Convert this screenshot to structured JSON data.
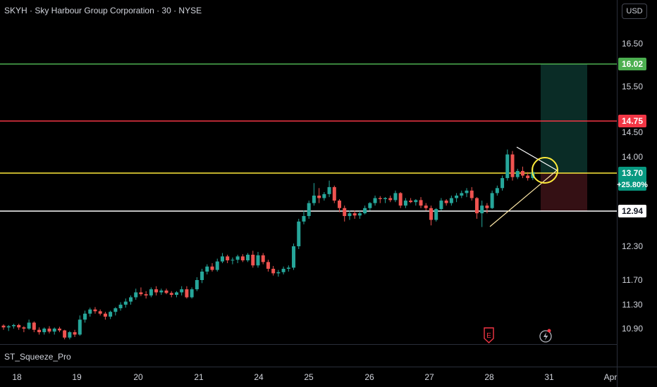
{
  "header": {
    "title": "SKYH · Sky Harbour Group Corporation · 30 · NYSE",
    "currency": "USD"
  },
  "indicator": {
    "label": "ST_Squeeze_Pro"
  },
  "colors": {
    "background": "#000000",
    "up": "#26a69a",
    "down": "#ef5350",
    "target_line": "#4caf50",
    "red_line": "#f23645",
    "yellow_line": "#ffeb3b",
    "white_line": "#ffffff"
  },
  "chart_data": {
    "type": "candlestick",
    "xlabels": [
      "18",
      "19",
      "20",
      "21",
      "24",
      "25",
      "26",
      "27",
      "28",
      "31",
      "Apr"
    ],
    "ylabels": [
      "16.50",
      "15.50",
      "14.50",
      "14.00",
      "12.30",
      "11.70",
      "11.30",
      "10.90"
    ],
    "price_levels": [
      {
        "value": 16.02,
        "label": "16.02",
        "color": "#4caf50"
      },
      {
        "value": 14.75,
        "label": "14.75",
        "color": "#f23645"
      },
      {
        "value": 13.7,
        "label": "13.70",
        "sublabel": "+25.80%",
        "color": "#ffeb3b",
        "tag_color": "#089981"
      },
      {
        "value": 12.94,
        "label": "12.94",
        "color": "#ffffff"
      }
    ],
    "candles": [
      [
        10.95,
        10.97,
        10.88,
        10.92
      ],
      [
        10.92,
        10.96,
        10.86,
        10.94
      ],
      [
        10.94,
        10.98,
        10.9,
        10.96
      ],
      [
        10.96,
        10.98,
        10.88,
        10.92
      ],
      [
        10.92,
        10.94,
        10.84,
        10.9
      ],
      [
        10.9,
        11.05,
        10.88,
        11.0
      ],
      [
        11.0,
        11.02,
        10.84,
        10.88
      ],
      [
        10.88,
        10.92,
        10.8,
        10.84
      ],
      [
        10.84,
        10.92,
        10.8,
        10.9
      ],
      [
        10.9,
        10.94,
        10.82,
        10.85
      ],
      [
        10.85,
        10.92,
        10.8,
        10.9
      ],
      [
        10.9,
        10.93,
        10.84,
        10.87
      ],
      [
        10.87,
        10.88,
        10.72,
        10.75
      ],
      [
        10.75,
        10.86,
        10.72,
        10.84
      ],
      [
        10.84,
        10.88,
        10.76,
        10.8
      ],
      [
        10.8,
        11.12,
        10.78,
        11.05
      ],
      [
        11.05,
        11.2,
        11.0,
        11.15
      ],
      [
        11.15,
        11.25,
        11.1,
        11.22
      ],
      [
        11.22,
        11.26,
        11.15,
        11.19
      ],
      [
        11.19,
        11.22,
        11.12,
        11.15
      ],
      [
        11.15,
        11.18,
        11.05,
        11.1
      ],
      [
        11.1,
        11.2,
        11.06,
        11.18
      ],
      [
        11.18,
        11.26,
        11.12,
        11.24
      ],
      [
        11.24,
        11.34,
        11.2,
        11.3
      ],
      [
        11.3,
        11.4,
        11.25,
        11.35
      ],
      [
        11.35,
        11.45,
        11.3,
        11.42
      ],
      [
        11.42,
        11.56,
        11.38,
        11.5
      ],
      [
        11.5,
        11.58,
        11.44,
        11.47
      ],
      [
        11.47,
        11.52,
        11.4,
        11.45
      ],
      [
        11.45,
        11.58,
        11.42,
        11.55
      ],
      [
        11.55,
        11.6,
        11.45,
        11.5
      ],
      [
        11.5,
        11.56,
        11.46,
        11.53
      ],
      [
        11.53,
        11.56,
        11.47,
        11.49
      ],
      [
        11.49,
        11.52,
        11.42,
        11.46
      ],
      [
        11.46,
        11.52,
        11.42,
        11.5
      ],
      [
        11.5,
        11.6,
        11.45,
        11.55
      ],
      [
        11.55,
        11.6,
        11.4,
        11.42
      ],
      [
        11.42,
        11.58,
        11.4,
        11.55
      ],
      [
        11.55,
        11.75,
        11.52,
        11.7
      ],
      [
        11.7,
        11.9,
        11.65,
        11.85
      ],
      [
        11.85,
        11.98,
        11.8,
        11.94
      ],
      [
        11.94,
        12.0,
        11.85,
        11.88
      ],
      [
        11.88,
        12.08,
        11.85,
        12.03
      ],
      [
        12.03,
        12.18,
        12.0,
        12.12
      ],
      [
        12.12,
        12.15,
        12.0,
        12.05
      ],
      [
        12.05,
        12.1,
        11.98,
        12.06
      ],
      [
        12.06,
        12.15,
        12.0,
        12.12
      ],
      [
        12.12,
        12.16,
        12.02,
        12.05
      ],
      [
        12.05,
        12.18,
        12.02,
        12.15
      ],
      [
        12.15,
        12.22,
        11.92,
        11.96
      ],
      [
        11.96,
        12.2,
        11.92,
        12.14
      ],
      [
        12.14,
        12.18,
        11.98,
        12.02
      ],
      [
        12.02,
        12.06,
        11.85,
        11.9
      ],
      [
        11.9,
        11.95,
        11.78,
        11.82
      ],
      [
        11.82,
        11.88,
        11.76,
        11.84
      ],
      [
        11.84,
        11.94,
        11.8,
        11.9
      ],
      [
        11.9,
        11.96,
        11.85,
        11.92
      ],
      [
        11.92,
        12.35,
        11.88,
        12.3
      ],
      [
        12.3,
        12.8,
        12.25,
        12.75
      ],
      [
        12.75,
        12.95,
        12.7,
        12.85
      ],
      [
        12.85,
        13.15,
        12.8,
        13.1
      ],
      [
        13.1,
        13.5,
        13.05,
        13.25
      ],
      [
        13.25,
        13.4,
        13.1,
        13.2
      ],
      [
        13.2,
        13.32,
        13.15,
        13.28
      ],
      [
        13.28,
        13.55,
        13.22,
        13.42
      ],
      [
        13.42,
        13.45,
        13.1,
        13.15
      ],
      [
        13.15,
        13.18,
        12.92,
        13.0
      ],
      [
        13.0,
        13.05,
        12.75,
        12.85
      ],
      [
        12.85,
        12.95,
        12.78,
        12.9
      ],
      [
        12.9,
        12.95,
        12.8,
        12.86
      ],
      [
        12.86,
        12.94,
        12.8,
        12.9
      ],
      [
        12.9,
        13.05,
        12.88,
        13.0
      ],
      [
        13.0,
        13.12,
        12.95,
        13.1
      ],
      [
        13.1,
        13.25,
        13.05,
        13.2
      ],
      [
        13.2,
        13.24,
        13.1,
        13.18
      ],
      [
        13.18,
        13.22,
        13.1,
        13.2
      ],
      [
        13.2,
        13.25,
        13.12,
        13.16
      ],
      [
        13.16,
        13.35,
        13.12,
        13.3
      ],
      [
        13.3,
        13.32,
        13.0,
        13.05
      ],
      [
        13.05,
        13.2,
        13.0,
        13.15
      ],
      [
        13.15,
        13.2,
        13.1,
        13.12
      ],
      [
        13.12,
        13.18,
        13.05,
        13.16
      ],
      [
        13.16,
        13.22,
        13.0,
        13.05
      ],
      [
        13.05,
        13.1,
        12.95,
        13.0
      ],
      [
        13.0,
        13.05,
        12.68,
        12.78
      ],
      [
        12.78,
        13.0,
        12.75,
        12.98
      ],
      [
        12.98,
        13.2,
        12.95,
        13.15
      ],
      [
        13.15,
        13.18,
        13.05,
        13.1
      ],
      [
        13.1,
        13.25,
        13.05,
        13.2
      ],
      [
        13.2,
        13.3,
        13.12,
        13.25
      ],
      [
        13.25,
        13.35,
        13.2,
        13.3
      ],
      [
        13.3,
        13.4,
        13.22,
        13.35
      ],
      [
        13.35,
        13.42,
        13.15,
        13.2
      ],
      [
        13.2,
        13.22,
        12.8,
        12.9
      ],
      [
        12.9,
        13.15,
        12.65,
        13.05
      ],
      [
        13.05,
        13.1,
        12.9,
        13.0
      ],
      [
        13.0,
        13.35,
        12.98,
        13.3
      ],
      [
        13.3,
        13.45,
        13.25,
        13.4
      ],
      [
        13.4,
        13.65,
        13.35,
        13.6
      ],
      [
        13.6,
        14.15,
        13.55,
        14.05
      ],
      [
        14.05,
        14.12,
        13.55,
        13.62
      ],
      [
        13.62,
        13.78,
        13.58,
        13.74
      ],
      [
        13.74,
        13.82,
        13.6,
        13.65
      ],
      [
        13.65,
        13.72,
        13.55,
        13.6
      ],
      [
        13.6,
        13.8,
        13.56,
        13.72
      ]
    ]
  }
}
